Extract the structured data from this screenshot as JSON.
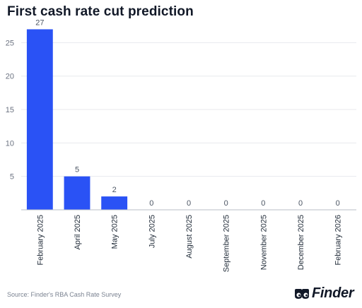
{
  "title": "First cash rate cut prediction",
  "source": "Source: Finder's RBA Cash Rate Survey",
  "brand": {
    "name": "Finder",
    "logo_icon": "finder-eyes-icon"
  },
  "colors": {
    "bar": "#2a52f5",
    "grid": "#e8eaee",
    "axis": "#b9bec6",
    "text": "#1f2a37"
  },
  "chart_data": {
    "type": "bar",
    "title": "First cash rate cut prediction",
    "categories": [
      "February 2025",
      "April 2025",
      "May 2025",
      "July 2025",
      "August 2025",
      "September 2025",
      "November 2025",
      "December 2025",
      "February 2026"
    ],
    "values": [
      27,
      5,
      2,
      0,
      0,
      0,
      0,
      0,
      0
    ],
    "data_labels": [
      "27",
      "5",
      "2",
      "0",
      "0",
      "0",
      "0",
      "0",
      "0"
    ],
    "ylim": [
      0,
      28
    ],
    "yticks": [
      5,
      10,
      15,
      20,
      25
    ],
    "ytick_labels": [
      "5",
      "10",
      "15",
      "20",
      "25"
    ],
    "grid": true,
    "legend": "none"
  }
}
